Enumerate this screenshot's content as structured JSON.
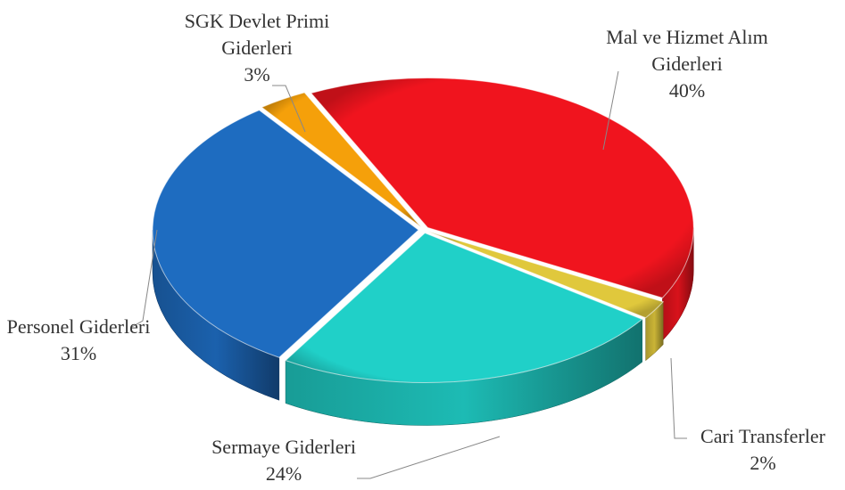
{
  "chart_data": {
    "type": "pie",
    "categories": [
      "Mal ve Hizmet Alım Giderleri",
      "Cari Transferler",
      "Sermaye Giderleri",
      "Personel Giderleri",
      "SGK Devlet Primi Giderleri"
    ],
    "values": [
      40,
      2,
      24,
      31,
      3
    ],
    "value_labels": [
      "40%",
      "2%",
      "24%",
      "31%",
      "3%"
    ],
    "colors": [
      "#f0141e",
      "#e0c83c",
      "#20d0c8",
      "#1e6cc0",
      "#f5a00a"
    ]
  }
}
